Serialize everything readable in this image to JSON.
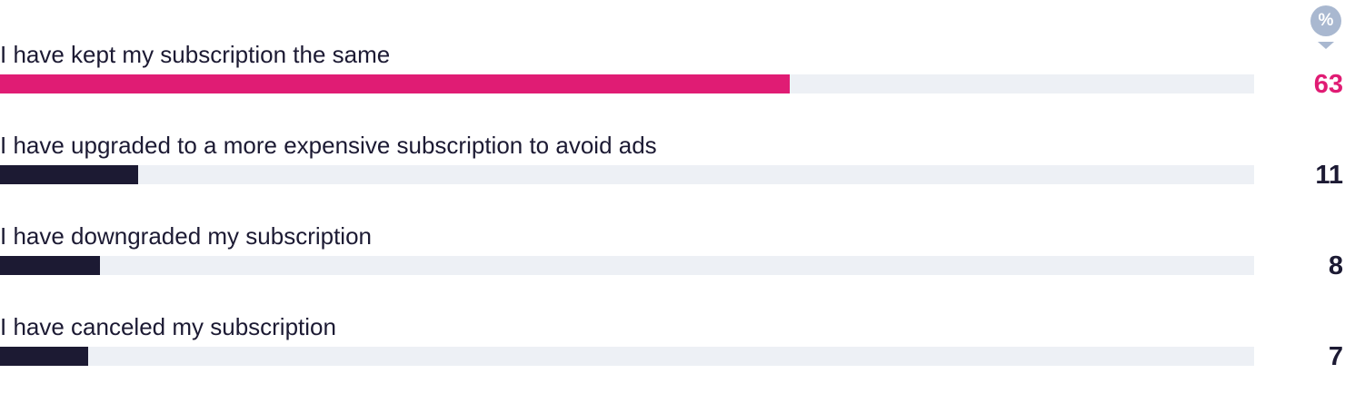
{
  "unit_badge": "%",
  "colors": {
    "highlight": "#e01c74",
    "default": "#1c1a33",
    "track": "#edf0f5",
    "badge": "#a9b8d0"
  },
  "chart_data": {
    "type": "bar",
    "orientation": "horizontal",
    "unit": "%",
    "xlim": [
      0,
      100
    ],
    "categories": [
      "I have kept my subscription the same",
      "I have upgraded to a more expensive subscription to avoid ads",
      "I have downgraded my subscription",
      "I have canceled my subscription"
    ],
    "values": [
      63,
      11,
      8,
      7
    ],
    "highlight_index": 0
  }
}
